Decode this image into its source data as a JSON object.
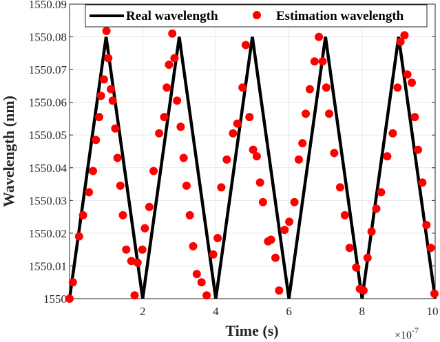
{
  "chart_data": {
    "type": "line",
    "title": "",
    "xlabel": "Time (s)",
    "ylabel": "Wavelength (nm)",
    "x_exponent_label": "×10",
    "x_exponent_power": "-7",
    "xlim": [
      0,
      10
    ],
    "ylim": [
      1550,
      1550.09
    ],
    "grid": true,
    "legend_position": "top",
    "xticks": [
      2,
      4,
      6,
      8,
      10
    ],
    "xtick_labels": [
      "2",
      "4",
      "6",
      "8",
      "10"
    ],
    "yticks": [
      1550,
      1550.01,
      1550.02,
      1550.03,
      1550.04,
      1550.05,
      1550.06,
      1550.07,
      1550.08,
      1550.09
    ],
    "ytick_labels": [
      "1550",
      "1550.01",
      "1550.02",
      "1550.03",
      "1550.04",
      "1550.05",
      "1550.06",
      "1550.07",
      "1550.08",
      "1550.09"
    ],
    "series": [
      {
        "name": "Real wavelength",
        "style": "line",
        "color": "#000000",
        "x": [
          0,
          1,
          2,
          3,
          4,
          5,
          6,
          7,
          8,
          9,
          10
        ],
        "y": [
          1550,
          1550.08,
          1550,
          1550.08,
          1550,
          1550.08,
          1550,
          1550.08,
          1550,
          1550.08,
          1550
        ]
      },
      {
        "name": "Estimation wavelength",
        "style": "markers",
        "color": "#ff0000",
        "x": [
          0.0,
          0.09,
          0.26,
          0.37,
          0.53,
          0.64,
          0.72,
          0.81,
          0.86,
          0.94,
          1.01,
          1.06,
          1.13,
          1.18,
          1.25,
          1.31,
          1.39,
          1.46,
          1.55,
          1.69,
          1.78,
          1.86,
          1.99,
          2.06,
          2.18,
          2.3,
          2.45,
          2.59,
          2.66,
          2.72,
          2.81,
          2.87,
          2.94,
          3.04,
          3.12,
          3.2,
          3.29,
          3.38,
          3.48,
          3.61,
          3.75,
          3.93,
          4.05,
          4.15,
          4.3,
          4.47,
          4.59,
          4.73,
          4.82,
          4.92,
          5.02,
          5.12,
          5.21,
          5.29,
          5.43,
          5.51,
          5.63,
          5.73,
          5.88,
          6.01,
          6.15,
          6.27,
          6.37,
          6.46,
          6.57,
          6.7,
          6.82,
          6.92,
          7.02,
          7.1,
          7.24,
          7.4,
          7.53,
          7.66,
          7.84,
          7.94,
          8.04,
          8.15,
          8.26,
          8.39,
          8.52,
          8.69,
          8.84,
          8.97,
          9.05,
          9.16,
          9.24,
          9.36,
          9.44,
          9.53,
          9.65,
          9.76,
          9.88,
          9.98
        ],
        "y": [
          1550.0,
          1550.005,
          1550.019,
          1550.0255,
          1550.0325,
          1550.039,
          1550.0485,
          1550.0555,
          1550.062,
          1550.067,
          1550.0818,
          1550.0735,
          1550.064,
          1550.0605,
          1550.052,
          1550.043,
          1550.0345,
          1550.0255,
          1550.015,
          1550.0115,
          1550.001,
          1550.011,
          1550.015,
          1550.0215,
          1550.028,
          1550.039,
          1550.0505,
          1550.0555,
          1550.0645,
          1550.0715,
          1550.081,
          1550.0735,
          1550.0605,
          1550.0525,
          1550.043,
          1550.0345,
          1550.0255,
          1550.016,
          1550.0075,
          1550.005,
          1550.001,
          1550.0135,
          1550.0185,
          1550.034,
          1550.0425,
          1550.0505,
          1550.0535,
          1550.0645,
          1550.0775,
          1550.0555,
          1550.0455,
          1550.0435,
          1550.0355,
          1550.0295,
          1550.0175,
          1550.018,
          1550.0125,
          1550.0025,
          1550.021,
          1550.0235,
          1550.0295,
          1550.0425,
          1550.0475,
          1550.0565,
          1550.064,
          1550.0725,
          1550.08,
          1550.0725,
          1550.0645,
          1550.0565,
          1550.0445,
          1550.034,
          1550.0255,
          1550.0155,
          1550.0095,
          1550.003,
          1550.0025,
          1550.0125,
          1550.0205,
          1550.0275,
          1550.0325,
          1550.0435,
          1550.0505,
          1550.0645,
          1550.0785,
          1550.0805,
          1550.0685,
          1550.066,
          1550.0555,
          1550.0455,
          1550.0355,
          1550.0225,
          1550.0155,
          1550.0015
        ]
      }
    ]
  }
}
